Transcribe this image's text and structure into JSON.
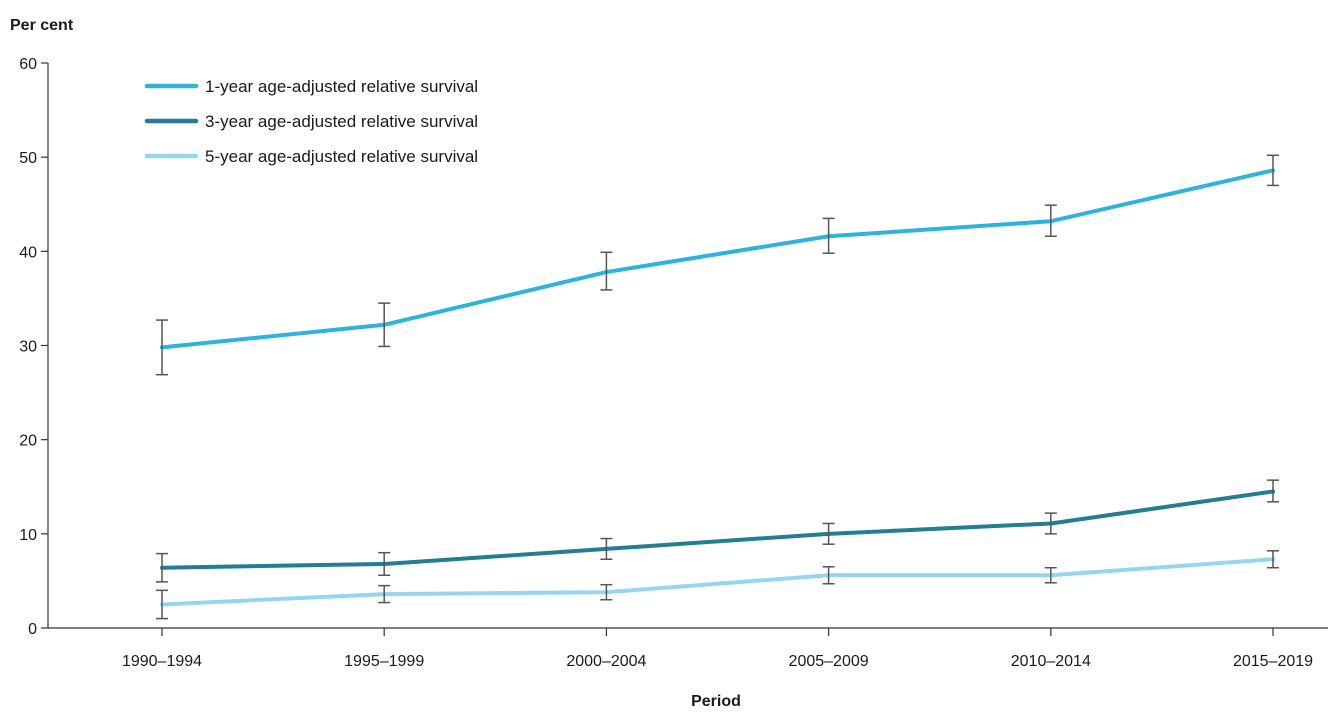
{
  "chart_data": {
    "type": "line",
    "ylabel": "Per cent",
    "xlabel": "Period",
    "ylim": [
      0,
      60
    ],
    "yticks": [
      0,
      10,
      20,
      30,
      40,
      50,
      60
    ],
    "categories": [
      "1990–1994",
      "1995–1999",
      "2000–2004",
      "2005–2009",
      "2010–2014",
      "2015–2019"
    ],
    "grid": false,
    "legend_position": "top-left",
    "series": [
      {
        "name": "1-year age-adjusted relative survival",
        "color": "#2eb3da",
        "values": [
          29.8,
          32.2,
          37.8,
          41.6,
          43.2,
          48.6
        ],
        "ci_low": [
          26.9,
          29.9,
          35.9,
          39.8,
          41.6,
          47.0
        ],
        "ci_high": [
          32.7,
          34.5,
          39.9,
          43.5,
          44.9,
          50.2
        ]
      },
      {
        "name": "3-year age-adjusted relative survival",
        "color": "#237d93",
        "values": [
          6.4,
          6.8,
          8.4,
          10.0,
          11.1,
          14.5
        ],
        "ci_low": [
          4.9,
          5.6,
          7.3,
          8.9,
          10.0,
          13.4
        ],
        "ci_high": [
          7.9,
          8.0,
          9.5,
          11.1,
          12.2,
          15.7
        ]
      },
      {
        "name": "5-year age-adjusted relative survival",
        "color": "#93d6ee",
        "values": [
          2.5,
          3.6,
          3.8,
          5.6,
          5.6,
          7.3
        ],
        "ci_low": [
          1.0,
          2.7,
          3.0,
          4.7,
          4.8,
          6.4
        ],
        "ci_high": [
          4.0,
          4.5,
          4.6,
          6.5,
          6.4,
          8.2
        ]
      }
    ],
    "error_bar_color": "#555555"
  }
}
